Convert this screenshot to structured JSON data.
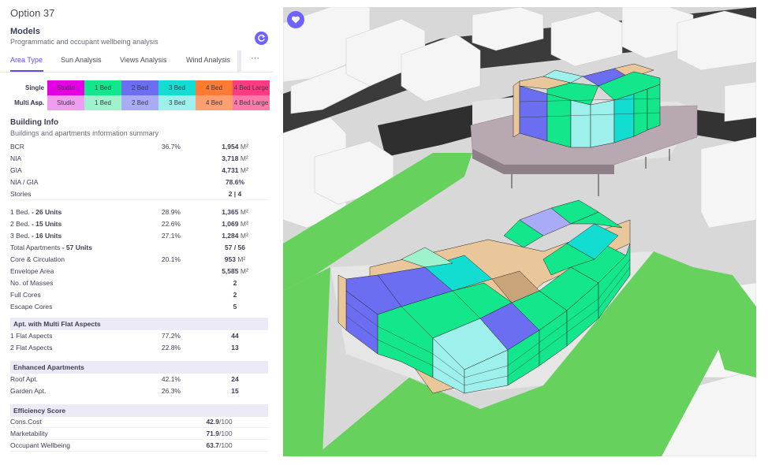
{
  "option_title": "Option 37",
  "models": {
    "heading": "Models",
    "subtitle": "Programmatic and occupant wellbeing analysis",
    "icon": "refresh-icon"
  },
  "tabs": [
    {
      "label": "Area Type",
      "active": true
    },
    {
      "label": "Sun Analysis",
      "active": false
    },
    {
      "label": "Views Analysis",
      "active": false
    },
    {
      "label": "Wind Analysis",
      "active": false
    }
  ],
  "tab_more": "···",
  "legend": {
    "rows": [
      {
        "label": "Single Asp.",
        "cells": [
          {
            "text": "Studio",
            "color": "#e300e3"
          },
          {
            "text": "1 Bed",
            "color": "#14e68c"
          },
          {
            "text": "2 Bed",
            "color": "#6b6ef0"
          },
          {
            "text": "3 Bed",
            "color": "#12ddd0"
          },
          {
            "text": "4 Bed",
            "color": "#ff7a33"
          },
          {
            "text": "4 Bed Large",
            "color": "#ff3c82"
          }
        ]
      },
      {
        "label": "Multi Asp.",
        "cells": [
          {
            "text": "Studio",
            "color": "#f09cf0"
          },
          {
            "text": "1 Bed",
            "color": "#9ef2cc"
          },
          {
            "text": "2 Bed",
            "color": "#a9abf6"
          },
          {
            "text": "3 Bed",
            "color": "#9ef0ec"
          },
          {
            "text": "4 Bed",
            "color": "#ff9e70"
          },
          {
            "text": "4 Bed Large",
            "color": "#ff7aa8"
          }
        ]
      }
    ]
  },
  "building_info": {
    "heading": "Building Info",
    "subtitle": "Buildings and apartments information summary",
    "rows": [
      {
        "label": "BCR",
        "bold": "",
        "pct": "36.7%",
        "value": "1,954",
        "unit": "M²"
      },
      {
        "label": "NIA",
        "bold": "",
        "pct": "",
        "value": "3,718",
        "unit": "M²"
      },
      {
        "label": "GIA",
        "bold": "",
        "pct": "",
        "value": "4,731",
        "unit": "M²"
      },
      {
        "label": "NIA / GIA",
        "bold": "",
        "pct": "",
        "value": "78.6%",
        "unit": ""
      },
      {
        "label": "Stories",
        "bold": "",
        "pct": "",
        "value": "2 | 4",
        "unit": ""
      },
      {
        "label": "1 Bed.",
        "bold": "- 26 Units",
        "pct": "28.9%",
        "value": "1,365",
        "unit": "M²"
      },
      {
        "label": "2 Bed.",
        "bold": "- 15 Units",
        "pct": "22.6%",
        "value": "1,069",
        "unit": "M²"
      },
      {
        "label": "3 Bed.",
        "bold": "- 16 Units",
        "pct": "27.1%",
        "value": "1,284",
        "unit": "M²"
      },
      {
        "label": "Total Apartments",
        "bold": "- 57 Units",
        "pct": "",
        "value": "57 / 56",
        "unit": ""
      },
      {
        "label": "Core & Circulation",
        "bold": "",
        "pct": "20.1%",
        "value": "953",
        "unit": "M²"
      },
      {
        "label": "Envelope Area",
        "bold": "",
        "pct": "",
        "value": "5,585",
        "unit": "M²"
      },
      {
        "label": "No. of Masses",
        "bold": "",
        "pct": "",
        "value": "2",
        "unit": ""
      },
      {
        "label": "Full Cores",
        "bold": "",
        "pct": "",
        "value": "2",
        "unit": ""
      },
      {
        "label": "Escape Cores",
        "bold": "",
        "pct": "",
        "value": "5",
        "unit": ""
      }
    ]
  },
  "multi_flat": {
    "heading": "Apt. with Multi Flat Aspects",
    "rows": [
      {
        "label": "1 Flat Aspects",
        "pct": "77.2%",
        "value": "44"
      },
      {
        "label": "2 Flat Aspects",
        "pct": "22.8%",
        "value": "13"
      }
    ]
  },
  "enhanced": {
    "heading": "Enhanced Apartments",
    "rows": [
      {
        "label": "Roof Apt.",
        "pct": "42.1%",
        "value": "24"
      },
      {
        "label": "Garden Apt.",
        "pct": "26.3%",
        "value": "15"
      }
    ]
  },
  "efficiency": {
    "heading": "Efficiency Score",
    "rows": [
      {
        "label": "Cons.Cost",
        "value": "42.9",
        "unit": "/100"
      },
      {
        "label": "Marketability",
        "value": "71.9",
        "unit": "/100"
      },
      {
        "label": "Occupant Wellbeing",
        "value": "63.7",
        "unit": "/100"
      }
    ]
  },
  "viewport": {
    "favorite_icon": "heart-icon",
    "ground_color": "#d9d9d9",
    "grass_color": "#66d15c",
    "podium_color": "#b7a8b2",
    "core_color": "#e9c79a"
  }
}
